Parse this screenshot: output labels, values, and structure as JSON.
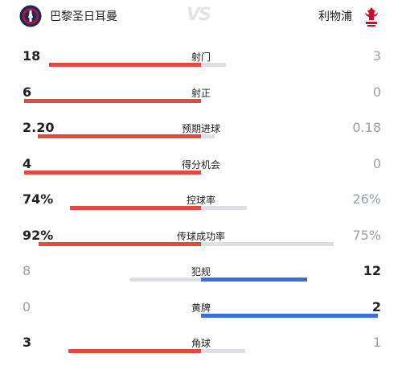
{
  "header": {
    "home_team": "巴黎圣日耳曼",
    "away_team": "利物浦",
    "vs_text": "VS"
  },
  "stats": [
    {
      "label": "射门",
      "home": "18",
      "away": "3",
      "home_frac": 0.857,
      "away_frac": 0.143,
      "leader": "home"
    },
    {
      "label": "射正",
      "home": "6",
      "away": "0",
      "home_frac": 1.0,
      "away_frac": 0.0,
      "leader": "home"
    },
    {
      "label": "预期进球",
      "home": "2.20",
      "away": "0.18",
      "home_frac": 0.924,
      "away_frac": 0.076,
      "leader": "home"
    },
    {
      "label": "得分机会",
      "home": "4",
      "away": "0",
      "home_frac": 1.0,
      "away_frac": 0.0,
      "leader": "home"
    },
    {
      "label": "控球率",
      "home": "74%",
      "away": "26%",
      "home_frac": 0.74,
      "away_frac": 0.26,
      "leader": "home"
    },
    {
      "label": "传球成功率",
      "home": "92%",
      "away": "75%",
      "home_frac": 0.92,
      "away_frac": 0.75,
      "leader": "home"
    },
    {
      "label": "犯规",
      "home": "8",
      "away": "12",
      "home_frac": 0.4,
      "away_frac": 0.6,
      "leader": "away"
    },
    {
      "label": "黄牌",
      "home": "0",
      "away": "2",
      "home_frac": 0.0,
      "away_frac": 1.0,
      "leader": "away"
    },
    {
      "label": "角球",
      "home": "3",
      "away": "1",
      "home_frac": 0.75,
      "away_frac": 0.25,
      "leader": "home"
    }
  ],
  "colors": {
    "home": "#e24a3f",
    "away": "#3a6fd6",
    "neutral": "#dcdfe4"
  }
}
